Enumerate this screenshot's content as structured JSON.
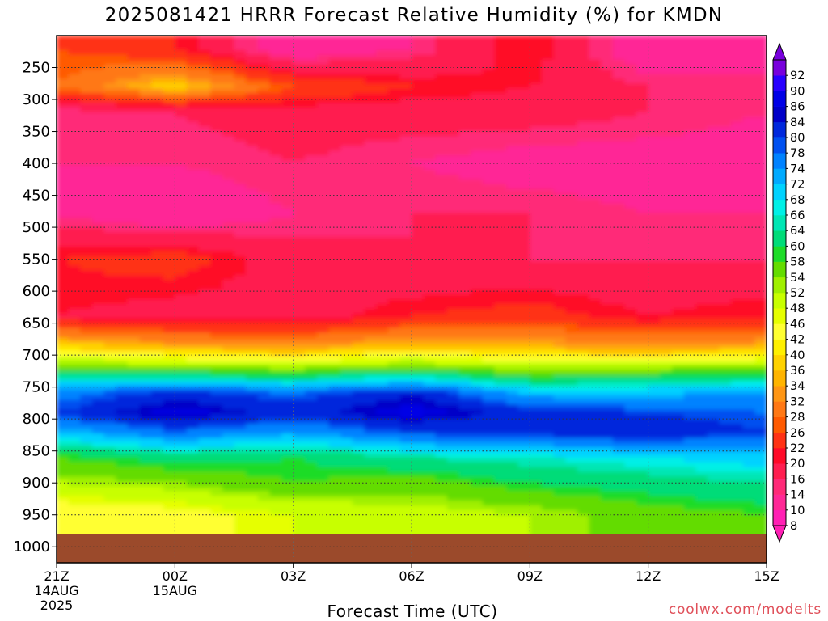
{
  "title": "2025081421 HRRR Forecast Relative Humidity (%) for KMDN",
  "xlabel": "Forecast Time (UTC)",
  "credit": "coolwx.com/modelts",
  "chart_data": {
    "type": "heatmap",
    "title": "2025081421 HRRR Forecast Relative Humidity (%) for KMDN",
    "xlabel": "Forecast Time (UTC)",
    "ylabel": "",
    "x_range_hours": [
      0,
      18
    ],
    "y_range_hpa": [
      200,
      1025
    ],
    "x_ticks": [
      {
        "hour": 0,
        "lines": [
          "21Z",
          "14AUG",
          "2025"
        ]
      },
      {
        "hour": 3,
        "lines": [
          "00Z",
          "15AUG"
        ]
      },
      {
        "hour": 6,
        "lines": [
          "03Z"
        ]
      },
      {
        "hour": 9,
        "lines": [
          "06Z"
        ]
      },
      {
        "hour": 12,
        "lines": [
          "09Z"
        ]
      },
      {
        "hour": 15,
        "lines": [
          "12Z"
        ]
      },
      {
        "hour": 18,
        "lines": [
          "15Z"
        ]
      }
    ],
    "y_ticks": [
      250,
      300,
      350,
      400,
      450,
      500,
      550,
      600,
      650,
      700,
      750,
      800,
      850,
      900,
      950,
      1000
    ],
    "grid": "dotted",
    "ground_level_hpa": 980,
    "colorbar": {
      "levels": [
        8,
        10,
        14,
        16,
        20,
        22,
        26,
        28,
        32,
        34,
        36,
        40,
        42,
        46,
        48,
        52,
        54,
        58,
        60,
        64,
        66,
        68,
        72,
        74,
        78,
        80,
        84,
        86,
        90,
        92
      ],
      "colors": [
        "#ff20b4",
        "#ff2896",
        "#ff2a78",
        "#ff1e50",
        "#ff0a28",
        "#ff3214",
        "#ff5a00",
        "#ff7814",
        "#ff9614",
        "#ffb400",
        "#ffd200",
        "#fff000",
        "#ffff32",
        "#e6ff00",
        "#c8ff00",
        "#a0f000",
        "#64dc00",
        "#1edc28",
        "#00dc78",
        "#00e6b4",
        "#00f0e6",
        "#00d2ff",
        "#00aaff",
        "#0082ff",
        "#0050f0",
        "#0028dc",
        "#0000c8",
        "#0000e6",
        "#2800ff",
        "#7800dc"
      ],
      "extend": "both"
    },
    "series": [
      {
        "hours": [
          0,
          3,
          6,
          9,
          12,
          15,
          18
        ],
        "pressure_hpa": 220,
        "rh_percent": [
          26,
          22,
          10,
          14,
          22,
          10,
          14
        ]
      },
      {
        "hours": [
          0,
          3,
          6,
          9,
          12,
          15,
          18
        ],
        "pressure_hpa": 280,
        "rh_percent": [
          28,
          38,
          26,
          22,
          20,
          16,
          14
        ]
      },
      {
        "hours": [
          0,
          3,
          6,
          9,
          12,
          15,
          18
        ],
        "pressure_hpa": 320,
        "rh_percent": [
          14,
          16,
          18,
          18,
          18,
          16,
          14
        ]
      },
      {
        "hours": [
          0,
          3,
          6,
          9,
          12,
          15,
          18
        ],
        "pressure_hpa": 400,
        "rh_percent": [
          14,
          14,
          16,
          14,
          12,
          12,
          12
        ]
      },
      {
        "hours": [
          0,
          3,
          6,
          9,
          12,
          15,
          18
        ],
        "pressure_hpa": 480,
        "rh_percent": [
          14,
          10,
          14,
          16,
          16,
          14,
          14
        ]
      },
      {
        "hours": [
          0,
          3,
          6,
          9,
          12,
          15,
          18
        ],
        "pressure_hpa": 550,
        "rh_percent": [
          22,
          24,
          18,
          16,
          16,
          16,
          16
        ]
      },
      {
        "hours": [
          0,
          3,
          6,
          9,
          12,
          15,
          18
        ],
        "pressure_hpa": 640,
        "rh_percent": [
          20,
          18,
          18,
          22,
          24,
          20,
          22
        ]
      },
      {
        "hours": [
          0,
          3,
          6,
          9,
          12,
          15,
          18
        ],
        "pressure_hpa": 690,
        "rh_percent": [
          40,
          36,
          34,
          38,
          36,
          34,
          36
        ]
      },
      {
        "hours": [
          0,
          3,
          6,
          9,
          12,
          15,
          18
        ],
        "pressure_hpa": 725,
        "rh_percent": [
          60,
          58,
          56,
          60,
          54,
          56,
          58
        ]
      },
      {
        "hours": [
          0,
          3,
          6,
          9,
          12,
          15,
          18
        ],
        "pressure_hpa": 760,
        "rh_percent": [
          76,
          82,
          78,
          84,
          72,
          72,
          74
        ]
      },
      {
        "hours": [
          0,
          3,
          6,
          9,
          12,
          15,
          18
        ],
        "pressure_hpa": 790,
        "rh_percent": [
          80,
          88,
          82,
          88,
          82,
          80,
          78
        ]
      },
      {
        "hours": [
          0,
          3,
          6,
          9,
          12,
          15,
          18
        ],
        "pressure_hpa": 820,
        "rh_percent": [
          72,
          78,
          74,
          80,
          82,
          84,
          80
        ]
      },
      {
        "hours": [
          0,
          3,
          6,
          9,
          12,
          15,
          18
        ],
        "pressure_hpa": 860,
        "rh_percent": [
          58,
          62,
          60,
          64,
          66,
          68,
          70
        ]
      },
      {
        "hours": [
          0,
          3,
          6,
          9,
          12,
          15,
          18
        ],
        "pressure_hpa": 900,
        "rh_percent": [
          52,
          54,
          58,
          56,
          60,
          62,
          64
        ]
      },
      {
        "hours": [
          0,
          3,
          6,
          9,
          12,
          15,
          18
        ],
        "pressure_hpa": 950,
        "rh_percent": [
          42,
          44,
          48,
          50,
          52,
          56,
          58
        ]
      }
    ]
  }
}
